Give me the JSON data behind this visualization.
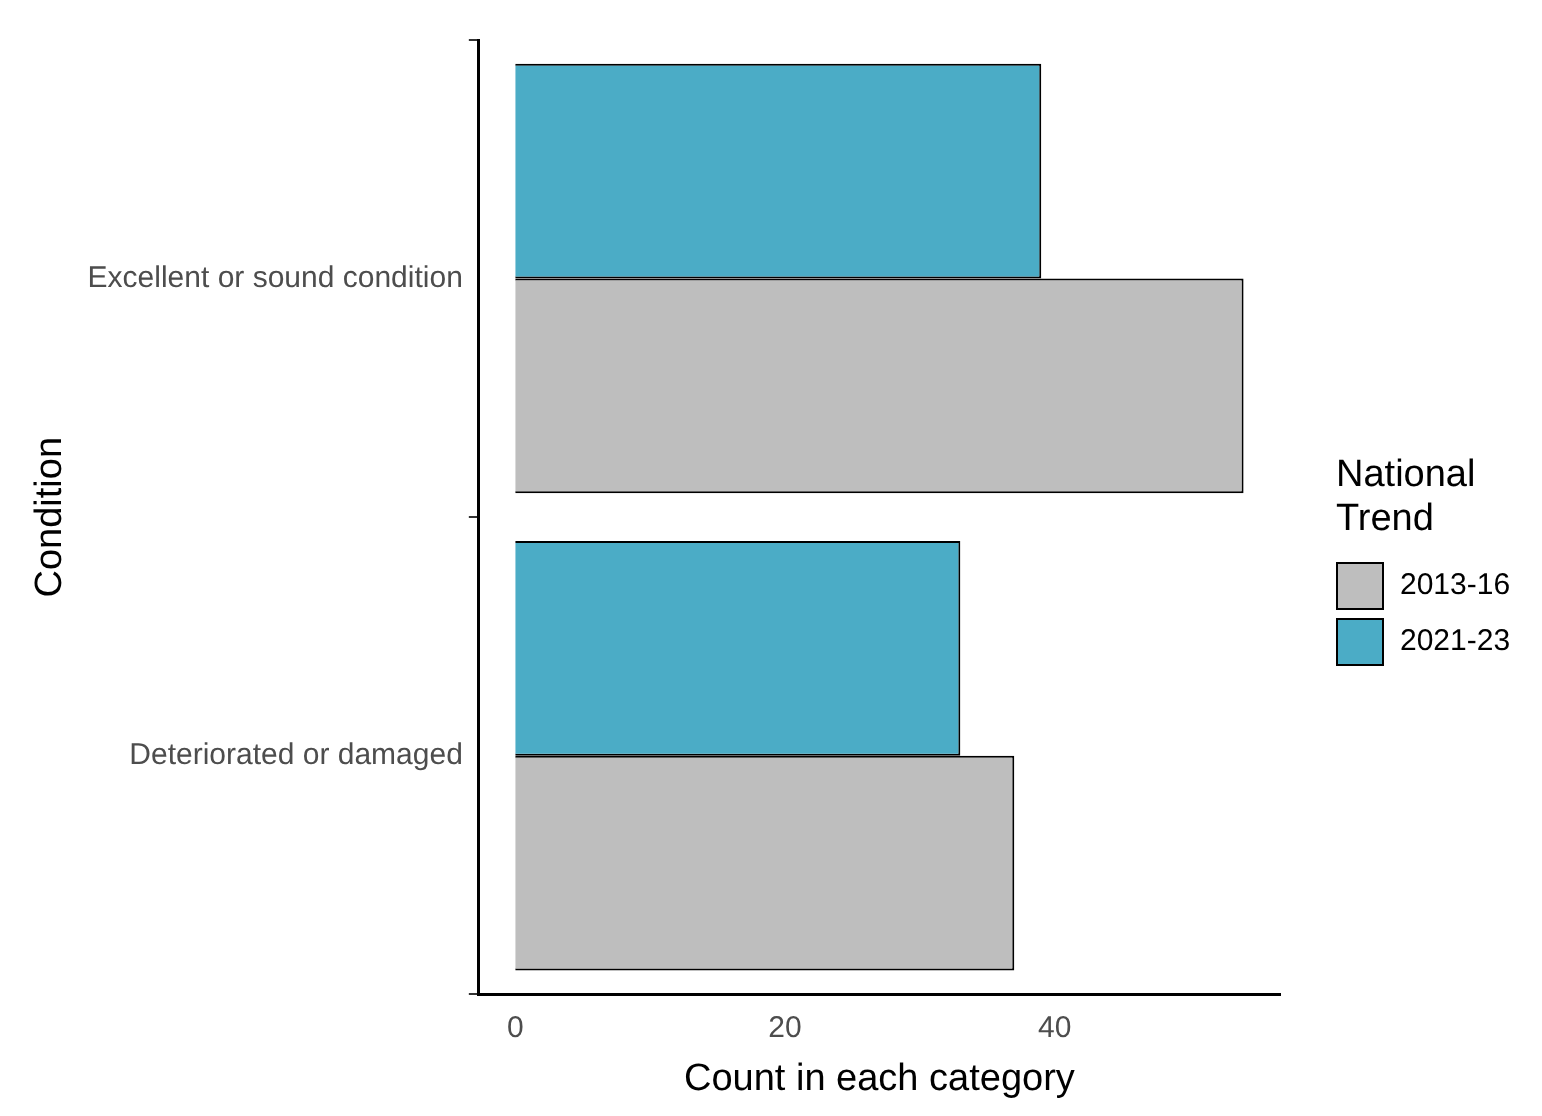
{
  "chart_data": {
    "type": "bar",
    "orientation": "horizontal",
    "xlabel": "Count in each category",
    "ylabel": "Condition",
    "legend_title": "National Trend",
    "legend": "right",
    "grid": false,
    "categories": [
      "Excellent or sound condition",
      "Deteriorated or damaged"
    ],
    "series": [
      {
        "name": "2013-16",
        "color": "#bebebe",
        "values": [
          54,
          37
        ]
      },
      {
        "name": "2021-23",
        "color": "#4bacc6",
        "values": [
          39,
          33
        ]
      }
    ],
    "xlim": [
      -2.7,
      56.7
    ],
    "xticks": [
      0,
      20,
      40
    ]
  }
}
